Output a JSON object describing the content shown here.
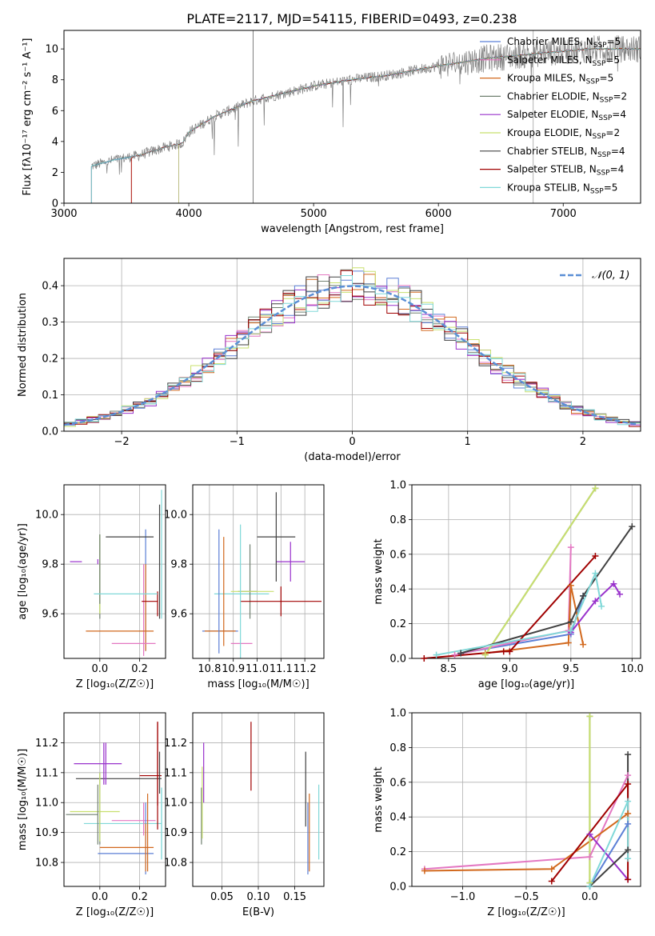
{
  "title": "PLATE=2117, MJD=54115, FIBERID=0493, z=0.238",
  "colors": {
    "Chabrier MILES": "#5b7fd6",
    "Salpeter MILES": "#e377c2",
    "Kroupa MILES": "#d2691e",
    "Chabrier ELODIE": "#708070",
    "Salpeter ELODIE": "#9932cc",
    "Kroupa ELODIE": "#c8e06e",
    "Chabrier STELIB": "#404040",
    "Salpeter STELIB": "#a00000",
    "Kroupa STELIB": "#80d8d8",
    "gauss": "#5b8fd6"
  },
  "chart_data": [
    {
      "id": "spectrum",
      "type": "line",
      "title": "PLATE=2117, MJD=54115, FIBERID=0493, z=0.238",
      "xlabel": "wavelength [Angstrom, rest frame]",
      "ylabel": "Flux [fλ10⁻¹⁷ erg cm⁻² s⁻¹ A⁻¹]",
      "xlim": [
        3000,
        7620
      ],
      "ylim": [
        0,
        11.2
      ],
      "xticks": [
        "3000",
        "4000",
        "5000",
        "6000",
        "7000"
      ],
      "yticks": [
        "0",
        "2",
        "4",
        "6",
        "8",
        "10"
      ],
      "legend_position": "upper-right",
      "legend": [
        {
          "name": "Chabrier MILES",
          "sub": "SSP",
          "n": "=5"
        },
        {
          "name": "Salpeter MILES",
          "sub": "SSP",
          "n": "=5"
        },
        {
          "name": "Kroupa MILES",
          "sub": "SSP",
          "n": "=5"
        },
        {
          "name": "Chabrier ELODIE",
          "sub": "SSP",
          "n": "=2"
        },
        {
          "name": "Salpeter ELODIE",
          "sub": "SSP",
          "n": "=4"
        },
        {
          "name": "Kroupa ELODIE",
          "sub": "SSP",
          "n": "=2"
        },
        {
          "name": "Chabrier STELIB",
          "sub": "SSP",
          "n": "=4"
        },
        {
          "name": "Salpeter STELIB",
          "sub": "SSP",
          "n": "=4"
        },
        {
          "name": "Kroupa STELIB",
          "sub": "SSP",
          "n": "=5"
        }
      ],
      "continuum": [
        [
          3220,
          2.4
        ],
        [
          3400,
          2.8
        ],
        [
          3600,
          3.1
        ],
        [
          3800,
          3.6
        ],
        [
          3950,
          3.9
        ],
        [
          4000,
          4.6
        ],
        [
          4200,
          5.6
        ],
        [
          4500,
          6.6
        ],
        [
          4800,
          7.2
        ],
        [
          5000,
          7.6
        ],
        [
          5300,
          8.0
        ],
        [
          5600,
          8.3
        ],
        [
          6000,
          8.9
        ],
        [
          6400,
          9.4
        ],
        [
          6800,
          9.7
        ],
        [
          7200,
          10.0
        ],
        [
          7620,
          10.0
        ]
      ],
      "model_start": {
        "Chabrier MILES": 3220,
        "Salpeter MILES": 3540,
        "Kroupa MILES": 3540,
        "Chabrier ELODIE": 3920,
        "Salpeter ELODIE": 3920,
        "Kroupa ELODIE": 3920,
        "Chabrier STELIB": 3220,
        "Salpeter STELIB": 3540,
        "Kroupa STELIB": 3220
      }
    },
    {
      "id": "residuals",
      "type": "histogram",
      "xlabel": "(data-model)/error",
      "ylabel": "Normed distribution",
      "xlim": [
        -2.5,
        2.5
      ],
      "ylim": [
        0,
        0.475
      ],
      "xticks": [
        "−2",
        "−1",
        "0",
        "1",
        "2"
      ],
      "yticks": [
        "0.0",
        "0.1",
        "0.2",
        "0.3",
        "0.4"
      ],
      "bin_width": 0.1,
      "legend_position": "upper-right",
      "reference_curve": "𝒩(0, 1)"
    },
    {
      "id": "age-vs-Z",
      "type": "errorbar",
      "xlabel": "Z [log₁₀(Z/Z☉)]",
      "ylabel": "age  [log₁₀(age/yr)]",
      "xlim": [
        -0.18,
        0.33
      ],
      "ylim": [
        9.42,
        10.12
      ],
      "xticks": [
        "0.0",
        "0.2"
      ],
      "yticks": [
        "9.6",
        "9.8",
        "10.0"
      ],
      "points": [
        {
          "s": "Chabrier MILES",
          "x": 0.23,
          "xe": 0.0,
          "y": 9.53,
          "ye": 0.0
        },
        {
          "s": "Salpeter MILES",
          "x": 0.17,
          "xe": 0.11,
          "y": 9.48,
          "ye": 0.0
        },
        {
          "s": "Kroupa MILES",
          "x": 0.1,
          "xe": 0.17,
          "y": 9.53,
          "ye": 0.0
        },
        {
          "s": "Chabrier ELODIE",
          "x": 0.0,
          "xe": 0.0,
          "y": 9.78,
          "ye": 0.14
        },
        {
          "s": "Salpeter ELODIE",
          "x": -0.12,
          "xe": 0.03,
          "y": 9.81,
          "ye": 0.0
        },
        {
          "s": "Kroupa ELODIE",
          "x": -0.03,
          "xe": 0.0,
          "y": 9.69,
          "ye": 0.0
        },
        {
          "s": "Chabrier STELIB",
          "x": 0.15,
          "xe": 0.12,
          "y": 9.91,
          "ye": 0.0
        },
        {
          "s": "Salpeter STELIB",
          "x": 0.25,
          "xe": 0.04,
          "y": 9.65,
          "ye": 0.0
        },
        {
          "s": "Kroupa STELIB",
          "x": 0.13,
          "xe": 0.16,
          "y": 9.68,
          "ye": 0.0
        }
      ],
      "vlines": [
        {
          "s": "Chabrier MILES",
          "x": 0.23,
          "y0": 9.45,
          "y1": 9.94
        },
        {
          "s": "Salpeter MILES",
          "x": 0.22,
          "y0": 9.43,
          "y1": 9.8
        },
        {
          "s": "Kroupa MILES",
          "x": 0.23,
          "y0": 9.45,
          "y1": 9.8
        },
        {
          "s": "Chabrier ELODIE",
          "x": 0.0,
          "y0": 9.58,
          "y1": 9.92
        },
        {
          "s": "Kroupa ELODIE",
          "x": 0.0,
          "y0": 9.6,
          "y1": 9.92
        },
        {
          "s": "Salpeter ELODIE",
          "x": -0.01,
          "y0": 9.8,
          "y1": 9.82
        },
        {
          "s": "Chabrier STELIB",
          "x": 0.3,
          "y0": 9.58,
          "y1": 10.04
        },
        {
          "s": "Salpeter STELIB",
          "x": 0.29,
          "y0": 9.59,
          "y1": 9.69
        },
        {
          "s": "Kroupa STELIB",
          "x": 0.31,
          "y0": 9.58,
          "y1": 10.1
        }
      ]
    },
    {
      "id": "age-vs-mass",
      "type": "errorbar",
      "xlabel": "mass [log₁₀(M/M☉)]",
      "ylabel": "",
      "xlim": [
        10.73,
        11.28
      ],
      "ylim": [
        9.42,
        10.12
      ],
      "xticks": [
        "10.8",
        "10.9",
        "11.0",
        "11.1",
        "11.2"
      ],
      "yticks": [
        "9.6",
        "9.8",
        "10.0"
      ],
      "points": [
        {
          "s": "Chabrier MILES",
          "x": 10.84,
          "xe": 0.0,
          "y": 9.69,
          "ye": 0.25
        },
        {
          "s": "Salpeter MILES",
          "x": 10.93,
          "xe": 0.0,
          "y": 9.48,
          "ye": 0.0
        },
        {
          "s": "Kroupa MILES",
          "x": 10.86,
          "xe": 0.0,
          "y": 9.69,
          "ye": 0.22
        },
        {
          "s": "Chabrier ELODIE",
          "x": 10.97,
          "xe": 0.0,
          "y": 9.73,
          "ye": 0.15
        },
        {
          "s": "Salpeter ELODIE",
          "x": 11.14,
          "xe": 0.06,
          "y": 9.81,
          "ye": 0.08
        },
        {
          "s": "Kroupa ELODIE",
          "x": 10.98,
          "xe": 0.09,
          "y": 9.69,
          "ye": 0.0
        },
        {
          "s": "Chabrier STELIB",
          "x": 11.08,
          "xe": 0.08,
          "y": 9.91,
          "ye": 0.18
        },
        {
          "s": "Salpeter STELIB",
          "x": 11.1,
          "xe": 0.17,
          "y": 9.65,
          "ye": 0.06
        },
        {
          "s": "Kroupa STELIB",
          "x": 10.93,
          "xe": 0.0,
          "y": 9.68,
          "ye": 0.28
        }
      ],
      "hlines": [
        {
          "s": "Chabrier MILES",
          "y": 9.53,
          "x0": 10.77,
          "x1": 10.92
        },
        {
          "s": "Salpeter MILES",
          "y": 9.48,
          "x0": 10.89,
          "x1": 10.98
        },
        {
          "s": "Kroupa MILES",
          "y": 9.53,
          "x0": 10.78,
          "x1": 10.91
        },
        {
          "s": "Kroupa STELIB",
          "y": 9.68,
          "x0": 10.82,
          "x1": 11.05
        },
        {
          "s": "Chabrier ELODIE",
          "y": 9.69,
          "x0": 10.92,
          "x1": 11.0
        }
      ]
    },
    {
      "id": "weight-vs-age",
      "type": "line",
      "xlabel": "age  [log₁₀(age/yr)]",
      "ylabel": "mass weight",
      "xlim": [
        8.2,
        10.07
      ],
      "ylim": [
        0,
        1.0
      ],
      "xticks": [
        "8.5",
        "9.0",
        "9.5",
        "10.0"
      ],
      "yticks": [
        "0.0",
        "0.2",
        "0.4",
        "0.6",
        "0.8",
        "1.0"
      ],
      "series": [
        {
          "s": "Chabrier MILES",
          "x": [
            8.6,
            9.5,
            9.6
          ],
          "y": [
            0.03,
            0.14,
            0.36
          ]
        },
        {
          "s": "Salpeter MILES",
          "x": [
            8.55,
            9.48,
            9.5
          ],
          "y": [
            0.02,
            0.16,
            0.64
          ]
        },
        {
          "s": "Kroupa MILES",
          "x": [
            8.8,
            9.48,
            9.5,
            9.6
          ],
          "y": [
            0.03,
            0.09,
            0.42,
            0.08
          ]
        },
        {
          "s": "Chabrier ELODIE",
          "x": [
            8.8,
            9.7
          ],
          "y": [
            0.02,
            0.98
          ]
        },
        {
          "s": "Salpeter ELODIE",
          "x": [
            9.5,
            9.7,
            9.85,
            9.9
          ],
          "y": [
            0.15,
            0.33,
            0.43,
            0.37
          ]
        },
        {
          "s": "Kroupa ELODIE",
          "x": [
            8.8,
            9.7
          ],
          "y": [
            0.02,
            0.98
          ]
        },
        {
          "s": "Chabrier STELIB",
          "x": [
            8.6,
            9.5,
            9.6,
            10.0
          ],
          "y": [
            0.03,
            0.21,
            0.36,
            0.76
          ]
        },
        {
          "s": "Salpeter STELIB",
          "x": [
            8.3,
            8.95,
            9.0,
            9.7
          ],
          "y": [
            0.0,
            0.04,
            0.04,
            0.59
          ]
        },
        {
          "s": "Kroupa STELIB",
          "x": [
            8.4,
            9.5,
            9.7,
            9.75
          ],
          "y": [
            0.02,
            0.16,
            0.49,
            0.3
          ]
        }
      ]
    },
    {
      "id": "mass-vs-Z",
      "type": "errorbar",
      "xlabel": "Z [log₁₀(Z/Z☉)]",
      "ylabel": "mass [log₁₀(M/M☉)]",
      "xlim": [
        -0.18,
        0.33
      ],
      "ylim": [
        10.72,
        11.3
      ],
      "xticks": [
        "0.0",
        "0.2"
      ],
      "yticks": [
        "10.8",
        "10.9",
        "11.0",
        "11.1",
        "11.2"
      ],
      "points": [
        {
          "s": "Chabrier MILES",
          "x": 0.03,
          "xe": 0.0,
          "y": 10.83,
          "ye": 0.0
        },
        {
          "s": "Salpeter MILES",
          "x": 0.17,
          "xe": 0.0,
          "y": 10.94,
          "ye": 0.0
        },
        {
          "s": "Kroupa MILES",
          "x": 0.23,
          "xe": 0.0,
          "y": 10.85,
          "ye": 0.08
        },
        {
          "s": "Chabrier ELODIE",
          "x": -0.01,
          "xe": 0.0,
          "y": 10.96,
          "ye": 0.1
        },
        {
          "s": "Salpeter ELODIE",
          "x": 0.02,
          "xe": 0.0,
          "y": 11.13,
          "ye": 0.07
        },
        {
          "s": "Kroupa ELODIE",
          "x": -0.11,
          "xe": 0.0,
          "y": 10.97,
          "ye": 0.0
        },
        {
          "s": "Chabrier STELIB",
          "x": 0.13,
          "xe": 0.0,
          "y": 11.08,
          "ye": 0.0
        },
        {
          "s": "Salpeter STELIB",
          "x": 0.29,
          "xe": 0.0,
          "y": 11.09,
          "ye": 0.18
        },
        {
          "s": "Kroupa STELIB",
          "x": 0.31,
          "xe": 0.0,
          "y": 10.93,
          "ye": 0.12
        }
      ],
      "hlines": [
        {
          "s": "Chabrier MILES",
          "y": 10.83,
          "x0": -0.01,
          "x1": 0.27
        },
        {
          "s": "Salpeter MILES",
          "y": 10.94,
          "x0": 0.06,
          "x1": 0.28
        },
        {
          "s": "Kroupa MILES",
          "y": 10.85,
          "x0": 0.0,
          "x1": 0.27
        },
        {
          "s": "Chabrier ELODIE",
          "y": 10.96,
          "x0": -0.17,
          "x1": -0.01
        },
        {
          "s": "Salpeter ELODIE",
          "y": 11.13,
          "x0": -0.13,
          "x1": 0.11
        },
        {
          "s": "Kroupa ELODIE",
          "y": 10.97,
          "x0": -0.15,
          "x1": 0.1
        },
        {
          "s": "Chabrier STELIB",
          "y": 11.08,
          "x0": -0.12,
          "x1": 0.31
        },
        {
          "s": "Salpeter STELIB",
          "y": 11.09,
          "x0": 0.2,
          "x1": 0.31
        },
        {
          "s": "Kroupa STELIB",
          "y": 10.93,
          "x0": -0.08,
          "x1": 0.31
        }
      ],
      "vlines": [
        {
          "s": "Chabrier MILES",
          "x": 0.23,
          "y0": 10.76,
          "y1": 11.0
        },
        {
          "s": "Salpeter MILES",
          "x": 0.22,
          "y0": 10.89,
          "y1": 11.0
        },
        {
          "s": "Kroupa MILES",
          "x": 0.24,
          "y0": 10.77,
          "y1": 11.03
        },
        {
          "s": "Chabrier ELODIE",
          "x": 0.0,
          "y0": 10.86,
          "y1": 11.1
        },
        {
          "s": "Kroupa ELODIE",
          "x": 0.0,
          "y0": 10.87,
          "y1": 11.1
        },
        {
          "s": "Salpeter ELODIE",
          "x": 0.03,
          "y0": 11.06,
          "y1": 11.2
        },
        {
          "s": "Chabrier STELIB",
          "x": 0.3,
          "y0": 11.03,
          "y1": 11.17
        },
        {
          "s": "Salpeter STELIB",
          "x": 0.29,
          "y0": 10.99,
          "y1": 11.27
        },
        {
          "s": "Kroupa STELIB",
          "x": 0.31,
          "y0": 10.81,
          "y1": 11.05
        }
      ]
    },
    {
      "id": "mass-vs-EBV",
      "type": "errorbar",
      "xlabel": "E(B-V)",
      "ylabel": "",
      "xlim": [
        0.01,
        0.19
      ],
      "ylim": [
        10.72,
        11.3
      ],
      "xticks": [
        "0.05",
        "0.10",
        "0.15"
      ],
      "yticks": [
        "10.8",
        "10.9",
        "11.0",
        "11.1",
        "11.2"
      ],
      "vlines": [
        {
          "s": "Chabrier ELODIE",
          "x": 0.022,
          "y0": 10.86,
          "y1": 11.05
        },
        {
          "s": "Kroupa ELODIE",
          "x": 0.023,
          "y0": 10.88,
          "y1": 11.12
        },
        {
          "s": "Salpeter ELODIE",
          "x": 0.025,
          "y0": 11.0,
          "y1": 11.2
        },
        {
          "s": "Salpeter STELIB",
          "x": 0.09,
          "y0": 11.04,
          "y1": 11.27
        },
        {
          "s": "Chabrier STELIB",
          "x": 0.165,
          "y0": 10.92,
          "y1": 11.17
        },
        {
          "s": "Kroupa MILES",
          "x": 0.17,
          "y0": 10.77,
          "y1": 11.03
        },
        {
          "s": "Chabrier MILES",
          "x": 0.168,
          "y0": 10.76,
          "y1": 11.0
        },
        {
          "s": "Kroupa STELIB",
          "x": 0.183,
          "y0": 10.81,
          "y1": 11.06
        }
      ]
    },
    {
      "id": "weight-vs-Z",
      "type": "line",
      "xlabel": "Z [log₁₀(Z/Z☉)]",
      "ylabel": "mass weight",
      "xlim": [
        -1.4,
        0.4
      ],
      "ylim": [
        0,
        1.0
      ],
      "xticks": [
        "−1.0",
        "−0.5",
        "0.0"
      ],
      "yticks": [
        "0.0",
        "0.2",
        "0.4",
        "0.6",
        "0.8",
        "1.0"
      ],
      "series": [
        {
          "s": "Salpeter MILES",
          "x": [
            -1.3,
            0.0,
            0.3
          ],
          "y": [
            0.1,
            0.17,
            0.64
          ]
        },
        {
          "s": "Kroupa MILES",
          "x": [
            -1.3,
            -0.3,
            0.3
          ],
          "y": [
            0.09,
            0.1,
            0.42
          ]
        },
        {
          "s": "Chabrier MILES",
          "x": [
            0.0,
            0.3
          ],
          "y": [
            0.0,
            0.36
          ]
        },
        {
          "s": "Chabrier ELODIE",
          "x": [
            0.0,
            0.0
          ],
          "y": [
            0.02,
            0.98
          ]
        },
        {
          "s": "Kroupa ELODIE",
          "x": [
            0.0,
            0.0
          ],
          "y": [
            0.02,
            0.98
          ]
        },
        {
          "s": "Salpeter ELODIE",
          "x": [
            0.0,
            0.3
          ],
          "y": [
            0.3,
            0.04
          ]
        },
        {
          "s": "Chabrier STELIB",
          "x": [
            0.0,
            0.3,
            0.3
          ],
          "y": [
            0.0,
            0.21,
            0.76
          ]
        },
        {
          "s": "Salpeter STELIB",
          "x": [
            -0.3,
            0.3,
            0.3
          ],
          "y": [
            0.03,
            0.59,
            0.04
          ]
        },
        {
          "s": "Kroupa STELIB",
          "x": [
            0.0,
            0.3,
            0.3
          ],
          "y": [
            0.0,
            0.49,
            0.16
          ]
        }
      ]
    }
  ]
}
